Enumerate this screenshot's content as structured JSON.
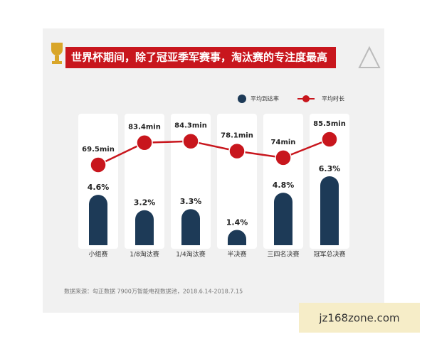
{
  "chart_data": {
    "type": "bar",
    "title": "世界杯期间，除了冠亚季军赛事，淘汰赛的专注度最高",
    "categories": [
      "小组赛",
      "1/8淘汰赛",
      "1/4淘汰赛",
      "半决赛",
      "三四名决赛",
      "冠军总决赛"
    ],
    "series": [
      {
        "name": "平均到达率",
        "type": "bar",
        "color": "#1d3a57",
        "values": [
          4.6,
          3.2,
          3.3,
          1.4,
          4.8,
          6.3
        ],
        "value_labels": [
          "4.6%",
          "3.2%",
          "3.3%",
          "1.4%",
          "4.8%",
          "6.3%"
        ]
      },
      {
        "name": "平均时长",
        "type": "line",
        "color": "#c8161d",
        "values": [
          69.5,
          83.4,
          84.3,
          78.1,
          74,
          85.5
        ],
        "value_labels": [
          "69.5min",
          "83.4min",
          "84.3min",
          "78.1min",
          "74min",
          "85.5min"
        ]
      }
    ],
    "source": "数据来源：勾正数据 7900万智能电视数据池，2018.6.14-2018.7.15"
  },
  "watermark": "jz168zone.com"
}
